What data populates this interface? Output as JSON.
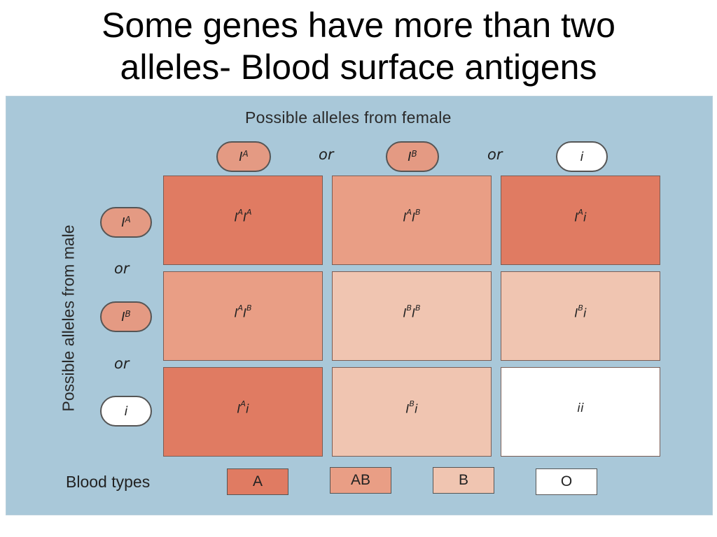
{
  "slide": {
    "title_line1": "Some genes have more than two",
    "title_line2": "alleles- Blood surface antigens"
  },
  "diagram": {
    "female_label": "Possible alleles from female",
    "male_label": "Possible alleles from male",
    "or_text": "or",
    "allele_base": "I",
    "allele_recessive": "i",
    "alleles": [
      {
        "base": "I",
        "sup": "A"
      },
      {
        "base": "I",
        "sup": "B"
      },
      {
        "base": "i",
        "sup": ""
      }
    ],
    "grid": [
      [
        {
          "parts": [
            [
              "I",
              "A"
            ],
            [
              "I",
              "A"
            ]
          ],
          "type": "A"
        },
        {
          "parts": [
            [
              "I",
              "A"
            ],
            [
              "I",
              "B"
            ]
          ],
          "type": "AB"
        },
        {
          "parts": [
            [
              "I",
              "A"
            ],
            [
              "i",
              ""
            ]
          ],
          "type": "A"
        }
      ],
      [
        {
          "parts": [
            [
              "I",
              "A"
            ],
            [
              "I",
              "B"
            ]
          ],
          "type": "AB"
        },
        {
          "parts": [
            [
              "I",
              "B"
            ],
            [
              "I",
              "B"
            ]
          ],
          "type": "B"
        },
        {
          "parts": [
            [
              "I",
              "B"
            ],
            [
              "i",
              ""
            ]
          ],
          "type": "B"
        }
      ],
      [
        {
          "parts": [
            [
              "I",
              "A"
            ],
            [
              "i",
              ""
            ]
          ],
          "type": "A"
        },
        {
          "parts": [
            [
              "I",
              "B"
            ],
            [
              "i",
              ""
            ]
          ],
          "type": "B"
        },
        {
          "parts": [
            [
              "i",
              ""
            ],
            [
              "i",
              ""
            ]
          ],
          "type": "O"
        }
      ]
    ],
    "legend": {
      "label": "Blood types",
      "types": [
        {
          "name": "A",
          "color": "#e07b62"
        },
        {
          "name": "AB",
          "color": "#e99e85"
        },
        {
          "name": "B",
          "color": "#f0c5b1"
        },
        {
          "name": "O",
          "color": "#ffffff"
        }
      ]
    },
    "colors": {
      "panel": "#a9c8d9",
      "allele_pill": "#e49a83",
      "recessive_pill": "#ffffff"
    }
  }
}
